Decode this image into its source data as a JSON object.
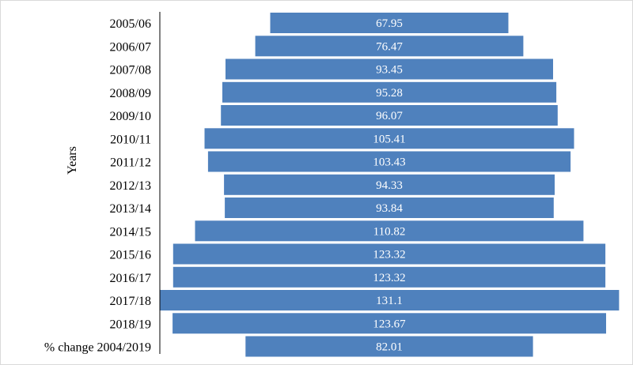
{
  "chart_data": {
    "type": "bar",
    "orientation": "horizontal",
    "layout": "centered",
    "categories": [
      "2005/06",
      "2006/07",
      "2007/08",
      "2008/09",
      "2009/10",
      "2010/11",
      "2011/12",
      "2012/13",
      "2013/14",
      "2014/15",
      "2015/16",
      "2016/17",
      "2017/18",
      "2018/19",
      "% change 2004/2019"
    ],
    "values": [
      67.95,
      76.47,
      93.45,
      95.28,
      96.07,
      105.41,
      103.43,
      94.33,
      93.84,
      110.82,
      123.32,
      123.32,
      131.1,
      123.67,
      82.01
    ],
    "ylabel": "Years",
    "grid": false,
    "legend": "none",
    "colors": {
      "bar": "#4f81bd",
      "bar_label": "#ffffff",
      "axis": "#000000"
    }
  }
}
